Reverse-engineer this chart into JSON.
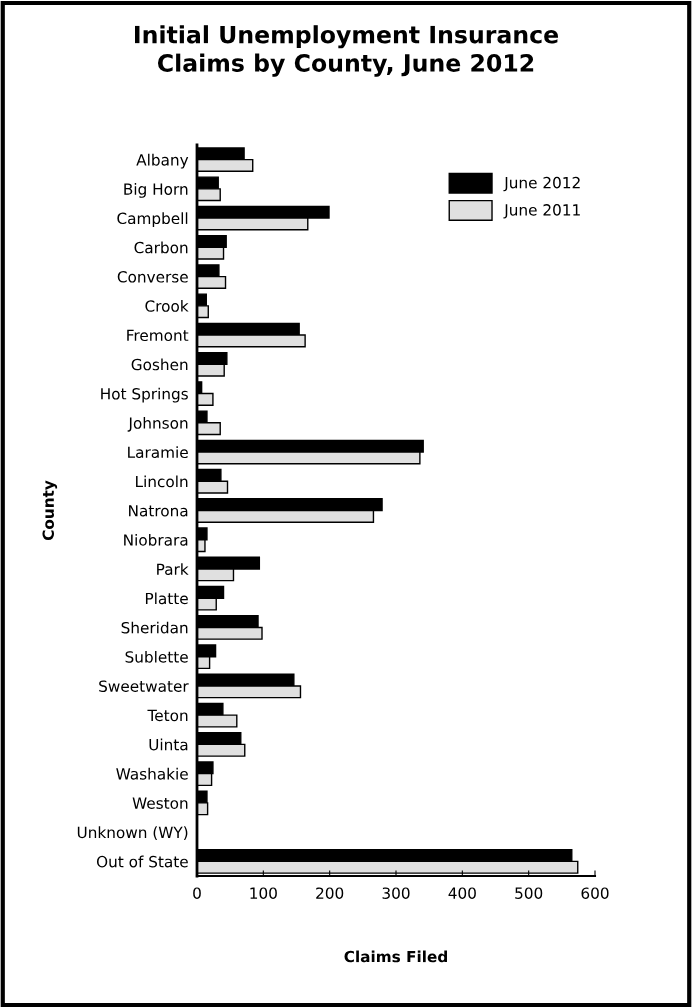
{
  "chart_data": {
    "type": "bar",
    "orientation": "horizontal",
    "title": "Initial Unemployment Insurance\nClaims by County, June 2012",
    "xlabel": "Claims Filed",
    "ylabel": "County",
    "categories": [
      "Albany",
      "Big Horn",
      "Campbell",
      "Carbon",
      "Converse",
      "Crook",
      "Fremont",
      "Goshen",
      "Hot Springs",
      "Johnson",
      "Laramie",
      "Lincoln",
      "Natrona",
      "Niobrara",
      "Park",
      "Platte",
      "Sheridan",
      "Sublette",
      "Sweetwater",
      "Teton",
      "Uinta",
      "Washakie",
      "Weston",
      "Unknown (WY)",
      "Out of State"
    ],
    "series": [
      {
        "name": "June 2012",
        "color": "#000000",
        "values": [
          71,
          32,
          199,
          44,
          33,
          14,
          154,
          45,
          7,
          15,
          341,
          36,
          279,
          15,
          94,
          40,
          92,
          28,
          146,
          39,
          66,
          24,
          15,
          null,
          565
        ]
      },
      {
        "name": "June 2011",
        "color": "#e0e0e0",
        "values": [
          84,
          35,
          167,
          40,
          43,
          17,
          163,
          41,
          24,
          35,
          336,
          46,
          266,
          12,
          55,
          29,
          98,
          19,
          156,
          60,
          72,
          22,
          16,
          null,
          574
        ]
      }
    ],
    "xlim": [
      0,
      600
    ],
    "xticks": [
      0,
      100,
      200,
      300,
      400,
      500,
      600
    ],
    "grid": false,
    "legend": "top right"
  }
}
